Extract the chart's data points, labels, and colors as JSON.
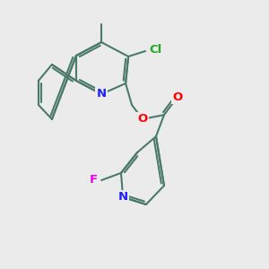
{
  "background_color": "#ebebeb",
  "bond_color": "#4a7a6a",
  "N_color": "#2020ff",
  "O_color": "#ff0000",
  "F_color": "#ee00ee",
  "Cl_color": "#22aa22",
  "lw": 1.5,
  "figsize": [
    3.0,
    3.0
  ],
  "dpi": 100,
  "xlim": [
    0,
    10
  ],
  "ylim": [
    0,
    10
  ]
}
